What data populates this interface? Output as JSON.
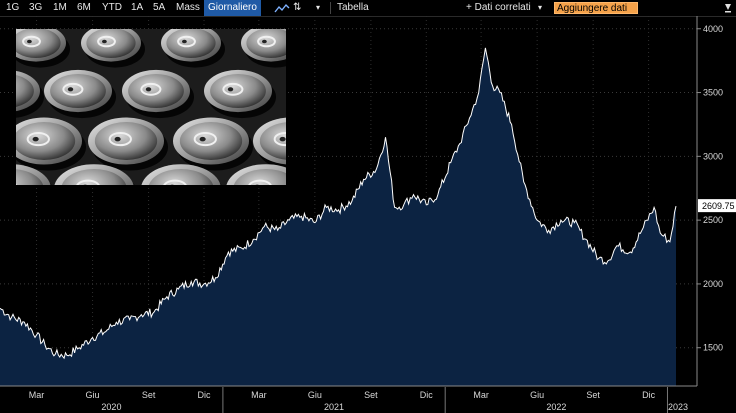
{
  "toolbar": {
    "ranges": [
      "1G",
      "3G",
      "1M",
      "6M",
      "YTD",
      "1A",
      "5A",
      "Mass"
    ],
    "frequency": "Giornaliero",
    "table_label": "Tabella",
    "related_label": "+ Dati correlati",
    "add_data_label": "Aggiungere dati"
  },
  "colors": {
    "line": "#ffffff",
    "fill": "#0c2342",
    "accent": "#1f5aa6",
    "add_data": "#f5a24a",
    "last_price_bg": "#ffffff"
  },
  "chart_data": {
    "type": "area",
    "ylim": [
      1200,
      4100
    ],
    "y_ticks": [
      1500,
      2000,
      2500,
      3000,
      3500,
      4000
    ],
    "last_value": 2609.75,
    "x_ticks": [
      {
        "label": "Mar",
        "date": "2020-03"
      },
      {
        "label": "Giu",
        "date": "2020-06"
      },
      {
        "label": "Set",
        "date": "2020-09"
      },
      {
        "label": "Dic",
        "date": "2020-12"
      },
      {
        "label": "Mar",
        "date": "2021-03"
      },
      {
        "label": "Giu",
        "date": "2021-06"
      },
      {
        "label": "Set",
        "date": "2021-09"
      },
      {
        "label": "Dic",
        "date": "2021-12"
      },
      {
        "label": "Mar",
        "date": "2022-03"
      },
      {
        "label": "Giu",
        "date": "2022-06"
      },
      {
        "label": "Set",
        "date": "2022-09"
      },
      {
        "label": "Dic",
        "date": "2022-12"
      }
    ],
    "years": [
      "2020",
      "2021",
      "2022",
      "2023"
    ],
    "series": [
      {
        "x": [
          "2020-01-01",
          "2020-01-20",
          "2020-02-10",
          "2020-03-01",
          "2020-03-15",
          "2020-04-01",
          "2020-04-20",
          "2020-05-10",
          "2020-06-01",
          "2020-06-20",
          "2020-07-10",
          "2020-08-01",
          "2020-08-20",
          "2020-09-10",
          "2020-10-01",
          "2020-10-20",
          "2020-11-10",
          "2020-12-01",
          "2020-12-20",
          "2021-01-10",
          "2021-02-01",
          "2021-02-20",
          "2021-03-10",
          "2021-04-01",
          "2021-04-20",
          "2021-05-10",
          "2021-06-01",
          "2021-06-20",
          "2021-07-10",
          "2021-08-01",
          "2021-08-20",
          "2021-09-10",
          "2021-09-25",
          "2021-10-10",
          "2021-10-25",
          "2021-11-10",
          "2021-12-01",
          "2021-12-20",
          "2022-01-10",
          "2022-01-25",
          "2022-02-10",
          "2022-02-25",
          "2022-03-08",
          "2022-03-20",
          "2022-04-01",
          "2022-04-20",
          "2022-05-10",
          "2022-06-01",
          "2022-06-20",
          "2022-07-10",
          "2022-08-01",
          "2022-08-20",
          "2022-09-10",
          "2022-09-25",
          "2022-10-10",
          "2022-11-01",
          "2022-11-20",
          "2022-12-10",
          "2022-12-20",
          "2023-01-05",
          "2023-01-15"
        ],
        "y": [
          1810,
          1740,
          1700,
          1600,
          1520,
          1450,
          1440,
          1500,
          1580,
          1620,
          1700,
          1720,
          1760,
          1780,
          1900,
          1960,
          2020,
          2000,
          2050,
          2250,
          2280,
          2350,
          2450,
          2420,
          2500,
          2530,
          2480,
          2600,
          2580,
          2650,
          2820,
          2900,
          3150,
          2600,
          2620,
          2700,
          2620,
          2700,
          2950,
          3100,
          3300,
          3500,
          3850,
          3550,
          3500,
          3250,
          2800,
          2500,
          2420,
          2500,
          2480,
          2350,
          2200,
          2180,
          2300,
          2250,
          2420,
          2600,
          2400,
          2330,
          2610
        ]
      }
    ]
  }
}
